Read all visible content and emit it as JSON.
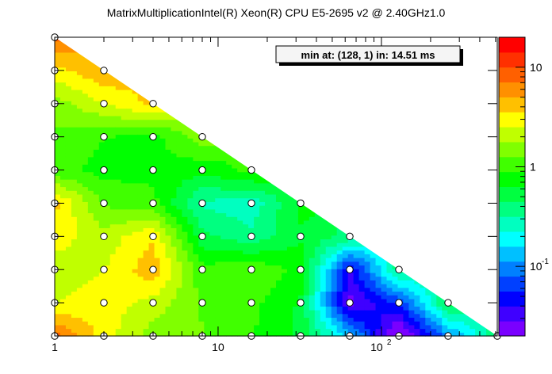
{
  "title": "MatrixMultiplicationIntel(R) Xeon(R) CPU E5-2695 v2 @ 2.40GHz1.0",
  "annotation": "min at: (128, 1) in: 14.51 ms",
  "chart_data": {
    "type": "heatmap",
    "style": "filled contour over triangular grid of measured points",
    "x_axis": {
      "scale": "log",
      "range": [
        1,
        512
      ],
      "tick_labels": [
        {
          "value": 1,
          "text": "1"
        },
        {
          "value": 10,
          "text": "10"
        },
        {
          "value": 100,
          "text": "10",
          "sup": "2"
        }
      ]
    },
    "y_axis": {
      "scale": "log2",
      "range": [
        1,
        512
      ],
      "tick_labels": []
    },
    "colorbar": {
      "scale": "log",
      "range": [
        0.02,
        20
      ],
      "tick_labels": [
        {
          "value": 10,
          "text": "10"
        },
        {
          "value": 1,
          "text": "1"
        },
        {
          "value": 0.1,
          "text": "10",
          "sup": "-1"
        }
      ],
      "colors": [
        "#7a00ff",
        "#3f00ff",
        "#0000ff",
        "#0040ff",
        "#0080ff",
        "#00c0ff",
        "#00ffff",
        "#00ffc0",
        "#00ff80",
        "#00ff40",
        "#00ff00",
        "#40ff00",
        "#80ff00",
        "#c0ff00",
        "#ffff00",
        "#ffc000",
        "#ff9000",
        "#ff6000",
        "#ff3000",
        "#ff0000"
      ]
    },
    "x_values": [
      1,
      2,
      4,
      8,
      16,
      32,
      64,
      128,
      256,
      512
    ],
    "y_values": [
      1,
      2,
      4,
      8,
      16,
      32,
      64,
      128,
      256,
      512
    ],
    "points": [
      {
        "x": 1,
        "y": 1,
        "z": 8.0
      },
      {
        "x": 2,
        "y": 1,
        "z": 3.0
      },
      {
        "x": 4,
        "y": 1,
        "z": 1.5
      },
      {
        "x": 8,
        "y": 1,
        "z": 1.3
      },
      {
        "x": 16,
        "y": 1,
        "z": 0.9
      },
      {
        "x": 32,
        "y": 1,
        "z": 0.6
      },
      {
        "x": 64,
        "y": 1,
        "z": 0.15
      },
      {
        "x": 128,
        "y": 1,
        "z": 0.015
      },
      {
        "x": 256,
        "y": 1,
        "z": 0.1
      },
      {
        "x": 512,
        "y": 1,
        "z": 0.4
      },
      {
        "x": 1,
        "y": 2,
        "z": 2.5
      },
      {
        "x": 2,
        "y": 2,
        "z": 3.0
      },
      {
        "x": 4,
        "y": 2,
        "z": 2.2
      },
      {
        "x": 8,
        "y": 2,
        "z": 1.2
      },
      {
        "x": 16,
        "y": 2,
        "z": 1.0
      },
      {
        "x": 32,
        "y": 2,
        "z": 0.6
      },
      {
        "x": 64,
        "y": 2,
        "z": 0.025
      },
      {
        "x": 128,
        "y": 2,
        "z": 0.06
      },
      {
        "x": 256,
        "y": 2,
        "z": 0.5
      },
      {
        "x": 1,
        "y": 4,
        "z": 2.0
      },
      {
        "x": 2,
        "y": 4,
        "z": 2.5
      },
      {
        "x": 4,
        "y": 4,
        "z": 4.5
      },
      {
        "x": 8,
        "y": 4,
        "z": 1.0
      },
      {
        "x": 16,
        "y": 4,
        "z": 1.2
      },
      {
        "x": 32,
        "y": 4,
        "z": 0.8
      },
      {
        "x": 64,
        "y": 4,
        "z": 0.04
      },
      {
        "x": 128,
        "y": 4,
        "z": 0.4
      },
      {
        "x": 1,
        "y": 8,
        "z": 3.0
      },
      {
        "x": 2,
        "y": 8,
        "z": 2.0
      },
      {
        "x": 4,
        "y": 8,
        "z": 3.5
      },
      {
        "x": 8,
        "y": 8,
        "z": 0.5
      },
      {
        "x": 16,
        "y": 8,
        "z": 0.35
      },
      {
        "x": 32,
        "y": 8,
        "z": 0.6
      },
      {
        "x": 64,
        "y": 8,
        "z": 0.4
      },
      {
        "x": 1,
        "y": 16,
        "z": 4.0
      },
      {
        "x": 2,
        "y": 16,
        "z": 1.2
      },
      {
        "x": 4,
        "y": 16,
        "z": 1.0
      },
      {
        "x": 8,
        "y": 16,
        "z": 0.3
      },
      {
        "x": 16,
        "y": 16,
        "z": 0.25
      },
      {
        "x": 32,
        "y": 16,
        "z": 0.7
      },
      {
        "x": 1,
        "y": 32,
        "z": 1.0
      },
      {
        "x": 2,
        "y": 32,
        "z": 0.8
      },
      {
        "x": 4,
        "y": 32,
        "z": 0.8
      },
      {
        "x": 8,
        "y": 32,
        "z": 0.7
      },
      {
        "x": 16,
        "y": 32,
        "z": 1.0
      },
      {
        "x": 1,
        "y": 64,
        "z": 1.2
      },
      {
        "x": 2,
        "y": 64,
        "z": 0.9
      },
      {
        "x": 4,
        "y": 64,
        "z": 0.8
      },
      {
        "x": 8,
        "y": 64,
        "z": 1.5
      },
      {
        "x": 1,
        "y": 128,
        "z": 1.5
      },
      {
        "x": 2,
        "y": 128,
        "z": 2.5
      },
      {
        "x": 4,
        "y": 128,
        "z": 4.0
      },
      {
        "x": 1,
        "y": 256,
        "z": 3.0
      },
      {
        "x": 2,
        "y": 256,
        "z": 5.0
      },
      {
        "x": 1,
        "y": 512,
        "z": 8.0
      }
    ]
  }
}
